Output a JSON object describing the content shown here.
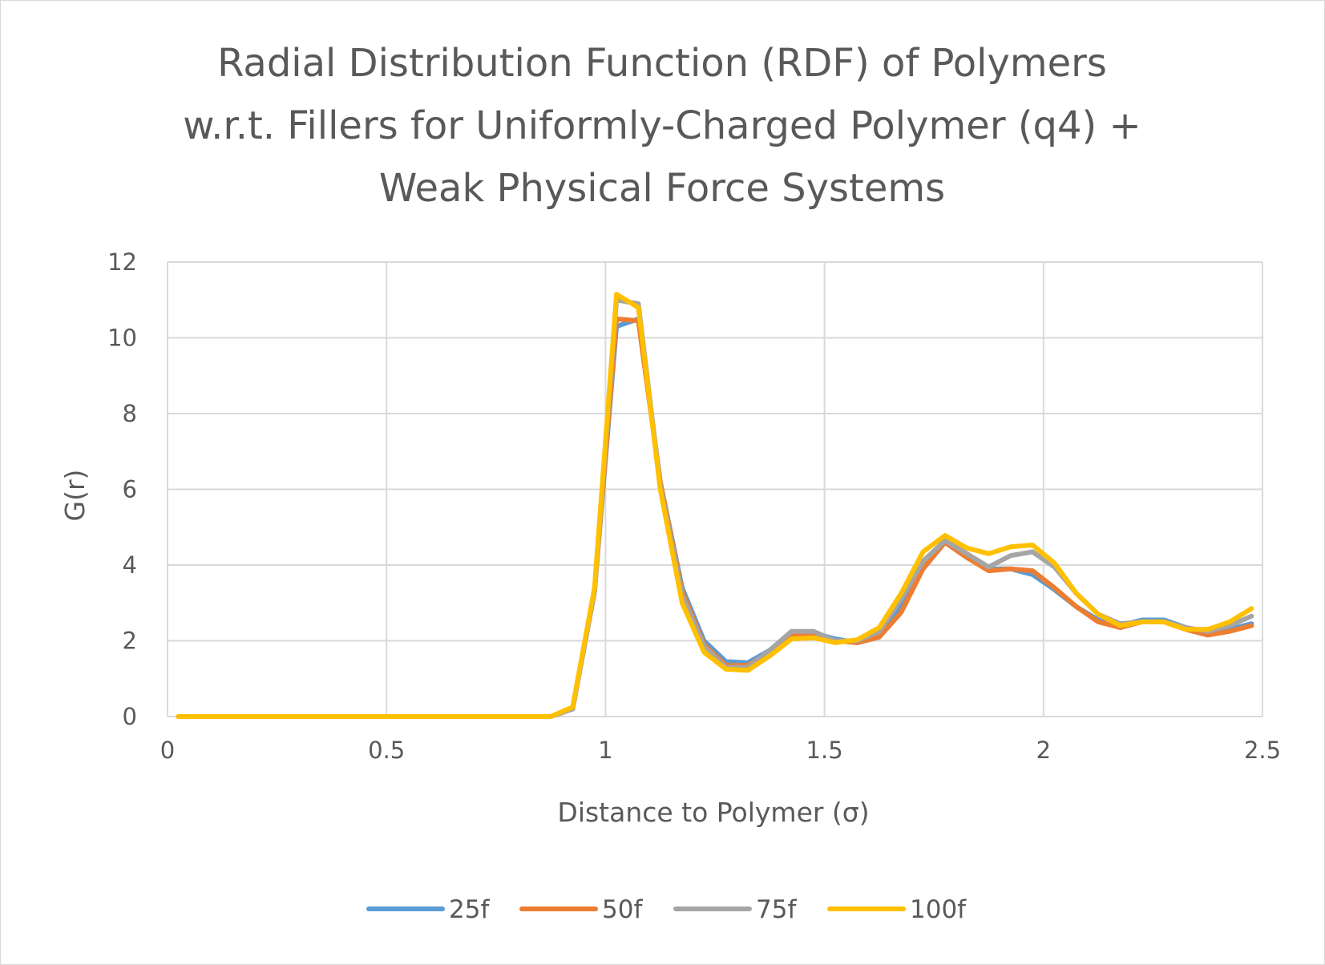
{
  "chart_data": {
    "type": "line",
    "title_lines": [
      "Radial Distribution Function (RDF) of Polymers",
      "w.r.t. Fillers for Uniformly-Charged Polymer (q4) +",
      "Weak Physical Force Systems"
    ],
    "xlabel": "Distance to Polymer (σ)",
    "ylabel": "G(r)",
    "xlim": [
      0,
      2.5
    ],
    "ylim": [
      0,
      12
    ],
    "xticks": [
      0,
      0.5,
      1,
      1.5,
      2,
      2.5
    ],
    "xtick_labels": [
      "0",
      "0.5",
      "1",
      "1.5",
      "2",
      "2.5"
    ],
    "yticks": [
      0,
      2,
      4,
      6,
      8,
      10,
      12
    ],
    "ytick_labels": [
      "0",
      "2",
      "4",
      "6",
      "8",
      "10",
      "12"
    ],
    "grid": true,
    "legend_position": "bottom",
    "x": [
      0.025,
      0.075,
      0.125,
      0.175,
      0.225,
      0.275,
      0.325,
      0.375,
      0.425,
      0.475,
      0.525,
      0.575,
      0.625,
      0.675,
      0.725,
      0.775,
      0.825,
      0.875,
      0.925,
      0.975,
      1.025,
      1.075,
      1.125,
      1.175,
      1.225,
      1.275,
      1.325,
      1.375,
      1.425,
      1.475,
      1.525,
      1.575,
      1.625,
      1.675,
      1.725,
      1.775,
      1.825,
      1.875,
      1.925,
      1.975,
      2.025,
      2.075,
      2.125,
      2.175,
      2.225,
      2.275,
      2.325,
      2.375,
      2.425,
      2.475
    ],
    "series": [
      {
        "name": "25f",
        "color": "#5b9bd5",
        "values": [
          0,
          0,
          0,
          0,
          0,
          0,
          0,
          0,
          0,
          0,
          0,
          0,
          0,
          0,
          0,
          0,
          0,
          0,
          0.2,
          3.3,
          10.3,
          10.5,
          6.2,
          3.4,
          2.0,
          1.45,
          1.42,
          1.75,
          2.2,
          2.2,
          2.05,
          1.95,
          2.1,
          2.9,
          3.9,
          4.6,
          4.2,
          3.9,
          3.9,
          3.75,
          3.35,
          2.9,
          2.55,
          2.4,
          2.55,
          2.55,
          2.35,
          2.2,
          2.3,
          2.45
        ]
      },
      {
        "name": "50f",
        "color": "#ed7d31",
        "values": [
          0,
          0,
          0,
          0,
          0,
          0,
          0,
          0,
          0,
          0,
          0,
          0,
          0,
          0,
          0,
          0,
          0,
          0,
          0.2,
          3.3,
          10.5,
          10.45,
          6.2,
          3.3,
          1.9,
          1.35,
          1.35,
          1.7,
          2.15,
          2.2,
          2.0,
          1.95,
          2.1,
          2.75,
          3.9,
          4.6,
          4.2,
          3.85,
          3.9,
          3.85,
          3.4,
          2.9,
          2.5,
          2.35,
          2.5,
          2.5,
          2.3,
          2.15,
          2.25,
          2.4
        ]
      },
      {
        "name": "75f",
        "color": "#a5a5a5",
        "values": [
          0,
          0,
          0,
          0,
          0,
          0,
          0,
          0,
          0,
          0,
          0,
          0,
          0,
          0,
          0,
          0,
          0,
          0,
          0.2,
          3.3,
          11.0,
          10.9,
          6.1,
          3.2,
          1.85,
          1.3,
          1.3,
          1.75,
          2.25,
          2.25,
          2.0,
          2.0,
          2.25,
          3.1,
          4.1,
          4.65,
          4.3,
          3.95,
          4.25,
          4.35,
          3.95,
          3.25,
          2.7,
          2.45,
          2.5,
          2.5,
          2.35,
          2.25,
          2.4,
          2.65
        ]
      },
      {
        "name": "100f",
        "color": "#ffc000",
        "values": [
          0,
          0,
          0,
          0,
          0,
          0,
          0,
          0,
          0,
          0,
          0,
          0,
          0,
          0,
          0,
          0,
          0,
          0,
          0.25,
          3.4,
          11.15,
          10.8,
          6.0,
          3.0,
          1.7,
          1.25,
          1.22,
          1.6,
          2.05,
          2.08,
          1.95,
          2.03,
          2.35,
          3.25,
          4.35,
          4.78,
          4.45,
          4.3,
          4.48,
          4.53,
          4.05,
          3.25,
          2.7,
          2.4,
          2.5,
          2.5,
          2.3,
          2.3,
          2.5,
          2.85
        ]
      }
    ]
  }
}
